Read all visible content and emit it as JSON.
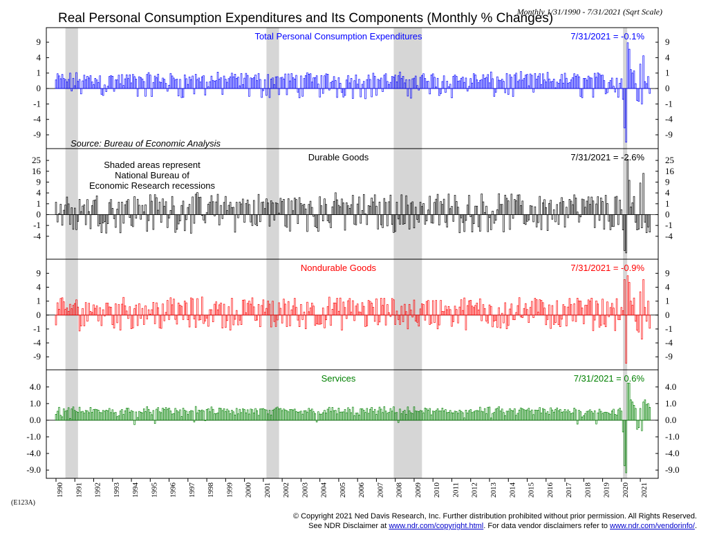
{
  "header": {
    "title": "Real Personal Consumption Expenditures and Its Components (Monthly % Changes)",
    "date_range": "Monthly 1/31/1990 - 7/31/2021 (Sqrt Scale)"
  },
  "footer": {
    "code": "(E123A)",
    "line1": "© Copyright 2021 Ned Davis Research, Inc.  Further distribution prohibited without prior permission.  All Rights Reserved.",
    "line2_prefix": "See NDR Disclaimer at ",
    "link1": "www.ndr.com/copyright.html",
    "line2_middle": ". For data vendor disclaimers refer to ",
    "link2": "www.ndr.com/vendorinfo/",
    "line2_suffix": "."
  },
  "chart_data": {
    "type": "bar",
    "y_scale": "sqrt",
    "x_range": [
      "1/31/1990",
      "7/31/2021"
    ],
    "years": [
      "1990",
      "1991",
      "1992",
      "1993",
      "1994",
      "1995",
      "1996",
      "1997",
      "1998",
      "1999",
      "2000",
      "2001",
      "2002",
      "2003",
      "2004",
      "2005",
      "2006",
      "2007",
      "2008",
      "2009",
      "2010",
      "2011",
      "2012",
      "2013",
      "2014",
      "2015",
      "2016",
      "2017",
      "2018",
      "2019",
      "2020",
      "2021"
    ],
    "recessions": [
      [
        "1990-07",
        "1991-03"
      ],
      [
        "2001-03",
        "2001-11"
      ],
      [
        "2007-12",
        "2009-06"
      ],
      [
        "2020-02",
        "2020-04"
      ]
    ],
    "source": "Source: Bureau of Economic Analysis",
    "recession_note": [
      "Shaded areas represent",
      "National Bureau of",
      "Economic Research recessions"
    ],
    "panels": [
      {
        "name": "Total Personal Consumption Expenditures",
        "color": "#0000ff",
        "last_label": "7/31/2021 = -0.1%",
        "ticks": [
          "9",
          "4",
          "1",
          "0",
          "-1",
          "-4",
          "-9"
        ],
        "tick_values": [
          9,
          4,
          1,
          0,
          -1,
          -4,
          -9
        ],
        "ylim": [
          -12.5,
          11
        ],
        "typical": 0.35,
        "spread": 0.45,
        "recent": [
          [
            "2020-01",
            0.4
          ],
          [
            "2020-02",
            -0.5
          ],
          [
            "2020-03",
            -6.5
          ],
          [
            "2020-04",
            -12.1
          ],
          [
            "2020-05",
            8.8
          ],
          [
            "2020-06",
            6.5
          ],
          [
            "2020-07",
            1.5
          ],
          [
            "2020-08",
            1.0
          ],
          [
            "2020-09",
            1.3
          ],
          [
            "2020-10",
            0.1
          ],
          [
            "2020-11",
            -0.6
          ],
          [
            "2020-12",
            -0.7
          ],
          [
            "2021-01",
            2.5
          ],
          [
            "2021-02",
            -1.0
          ],
          [
            "2021-03",
            4.5
          ],
          [
            "2021-04",
            0.2
          ],
          [
            "2021-05",
            0.1
          ],
          [
            "2021-06",
            0.6
          ],
          [
            "2021-07",
            -0.1
          ]
        ]
      },
      {
        "name": "Durable Goods",
        "color": "#000000",
        "last_label": "7/31/2021 = -2.6%",
        "ticks": [
          "25",
          "16",
          "9",
          "4",
          "1",
          "0",
          "-1",
          "-4"
        ],
        "tick_values": [
          25,
          16,
          9,
          4,
          1,
          0,
          -1,
          -4
        ],
        "ylim": [
          -13,
          27
        ],
        "typical": 0.6,
        "spread": 1.9,
        "recent": [
          [
            "2020-01",
            0.2
          ],
          [
            "2020-02",
            -2.0
          ],
          [
            "2020-03",
            -11.0
          ],
          [
            "2020-04",
            -12.5
          ],
          [
            "2020-05",
            26.0
          ],
          [
            "2020-06",
            10.0
          ],
          [
            "2020-07",
            0.5
          ],
          [
            "2020-08",
            1.2
          ],
          [
            "2020-09",
            2.8
          ],
          [
            "2020-10",
            -0.5
          ],
          [
            "2020-11",
            -2.0
          ],
          [
            "2020-12",
            -1.8
          ],
          [
            "2021-01",
            8.5
          ],
          [
            "2021-02",
            -1.5
          ],
          [
            "2021-03",
            14.5
          ],
          [
            "2021-04",
            -0.5
          ],
          [
            "2021-05",
            -2.8
          ],
          [
            "2021-06",
            -1.3
          ],
          [
            "2021-07",
            -2.6
          ]
        ]
      },
      {
        "name": "Nondurable Goods",
        "color": "#ff0000",
        "last_label": "7/31/2021 = -0.9%",
        "ticks": [
          "9",
          "4",
          "1",
          "0",
          "-1",
          "-4",
          "-9"
        ],
        "tick_values": [
          9,
          4,
          1,
          0,
          -1,
          -4,
          -9
        ],
        "ylim": [
          -12.5,
          11
        ],
        "typical": 0.25,
        "spread": 0.8,
        "recent": [
          [
            "2020-01",
            0.3
          ],
          [
            "2020-02",
            0.1
          ],
          [
            "2020-03",
            6.5
          ],
          [
            "2020-04",
            -12.0
          ],
          [
            "2020-05",
            8.0
          ],
          [
            "2020-06",
            5.5
          ],
          [
            "2020-07",
            1.0
          ],
          [
            "2020-08",
            0.5
          ],
          [
            "2020-09",
            1.5
          ],
          [
            "2020-10",
            -0.2
          ],
          [
            "2020-11",
            -1.2
          ],
          [
            "2020-12",
            -1.5
          ],
          [
            "2021-01",
            2.8
          ],
          [
            "2021-02",
            -3.0
          ],
          [
            "2021-03",
            6.5
          ],
          [
            "2021-04",
            0.3
          ],
          [
            "2021-05",
            -0.2
          ],
          [
            "2021-06",
            1.0
          ],
          [
            "2021-07",
            -0.9
          ]
        ]
      },
      {
        "name": "Services",
        "color": "#008000",
        "last_label": "7/31/2021 = 0.6%",
        "ticks": [
          "4.0",
          "1.0",
          "0.0",
          "-1.0",
          "-4.0",
          "-9.0"
        ],
        "tick_values": [
          4,
          1,
          0,
          -1,
          -4,
          -9
        ],
        "ylim": [
          -10,
          6
        ],
        "typical": 0.3,
        "spread": 0.2,
        "recent": [
          [
            "2020-01",
            0.3
          ],
          [
            "2020-02",
            -0.5
          ],
          [
            "2020-03",
            -7.5
          ],
          [
            "2020-04",
            -10.0
          ],
          [
            "2020-05",
            5.0
          ],
          [
            "2020-06",
            5.0
          ],
          [
            "2020-07",
            1.5
          ],
          [
            "2020-08",
            1.2
          ],
          [
            "2020-09",
            0.8
          ],
          [
            "2020-10",
            0.5
          ],
          [
            "2020-11",
            -0.3
          ],
          [
            "2020-12",
            -0.2
          ],
          [
            "2021-01",
            0.5
          ],
          [
            "2021-02",
            -0.4
          ],
          [
            "2021-03",
            1.2
          ],
          [
            "2021-04",
            1.5
          ],
          [
            "2021-05",
            0.9
          ],
          [
            "2021-06",
            1.0
          ],
          [
            "2021-07",
            0.6
          ]
        ]
      }
    ]
  }
}
